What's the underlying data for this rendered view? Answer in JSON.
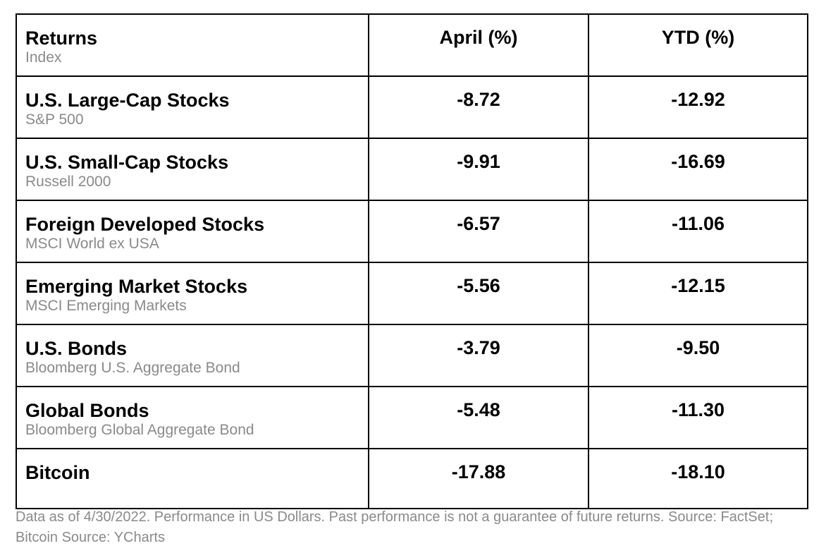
{
  "table": {
    "header": {
      "title": "Returns",
      "subtitle": "Index",
      "april_label": "April (%)",
      "ytd_label": "YTD (%)"
    },
    "rows": [
      {
        "name": "U.S. Large-Cap Stocks",
        "index": "S&P 500",
        "april": "-8.72",
        "ytd": "-12.92"
      },
      {
        "name": "U.S. Small-Cap Stocks",
        "index": "Russell 2000",
        "april": "-9.91",
        "ytd": "-16.69"
      },
      {
        "name": "Foreign Developed Stocks",
        "index": "MSCI World ex USA",
        "april": "-6.57",
        "ytd": "-11.06"
      },
      {
        "name": "Emerging Market Stocks",
        "index": "MSCI Emerging Markets",
        "april": "-5.56",
        "ytd": "-12.15"
      },
      {
        "name": "U.S. Bonds",
        "index": "Bloomberg U.S. Aggregate Bond",
        "april": "-3.79",
        "ytd": "-9.50"
      },
      {
        "name": "Global Bonds",
        "index": "Bloomberg Global Aggregate Bond",
        "april": "-5.48",
        "ytd": "-11.30"
      },
      {
        "name": "Bitcoin",
        "index": "",
        "april": "-17.88",
        "ytd": "-18.10"
      }
    ]
  },
  "footnote": "Data as of 4/30/2022. Performance in US Dollars. Past performance is not a guarantee of future returns. Source: FactSet; Bitcoin Source: YCharts"
}
